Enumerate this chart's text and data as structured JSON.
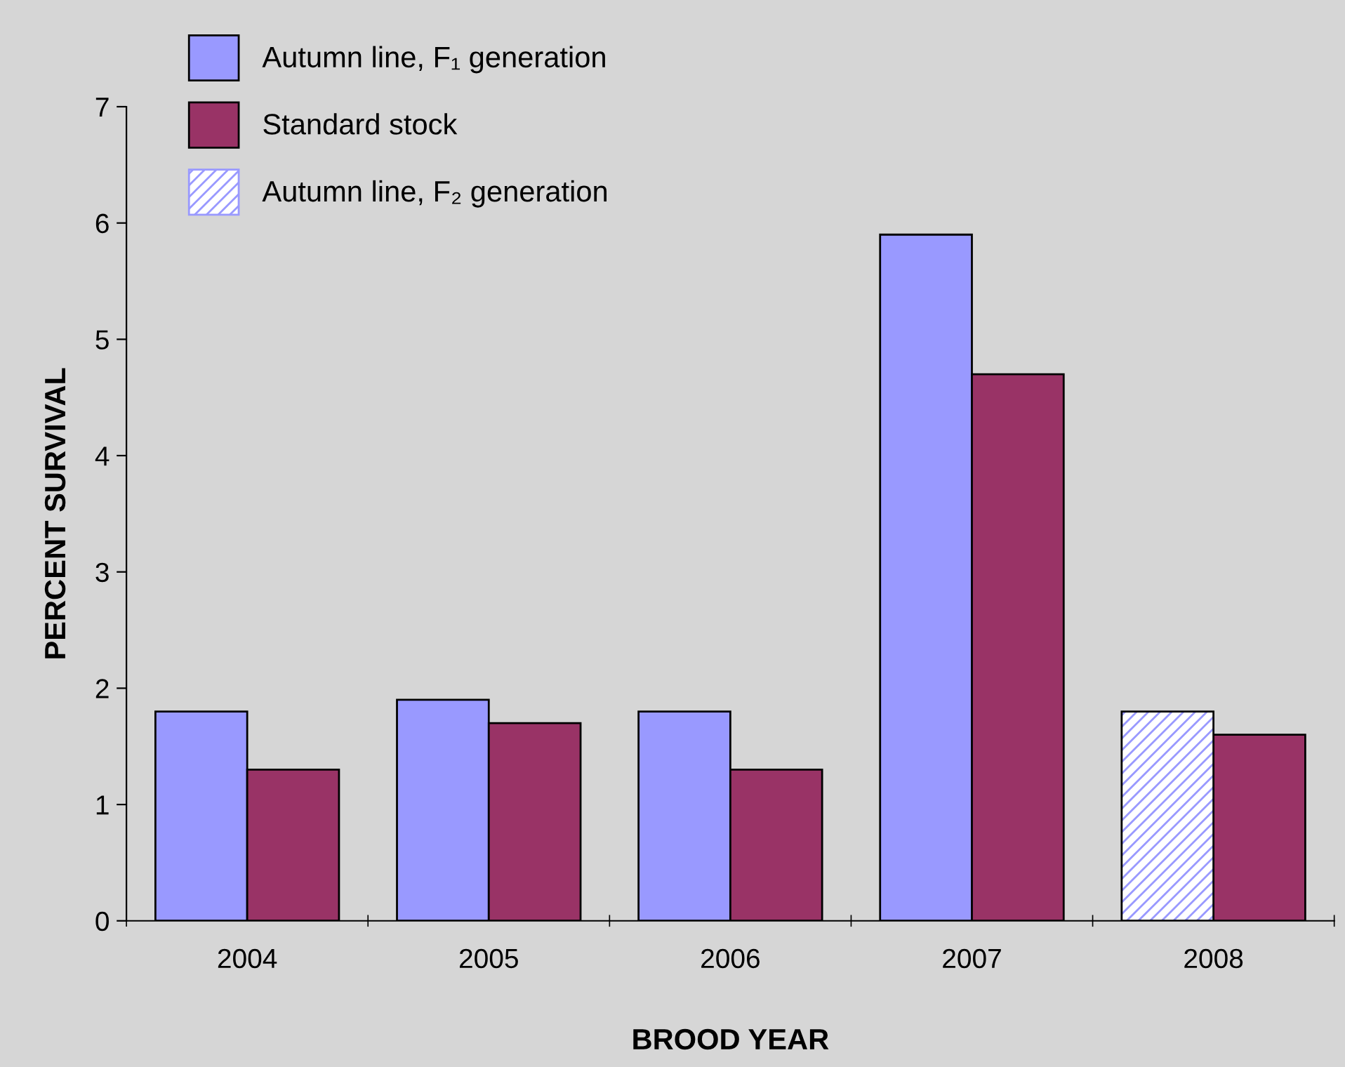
{
  "chart_data": {
    "type": "bar",
    "xlabel": "BROOD YEAR",
    "ylabel": "PERCENT SURVIVAL",
    "categories": [
      "2004",
      "2005",
      "2006",
      "2007",
      "2008"
    ],
    "series": [
      {
        "name": "Autumn line, F₁ generation",
        "color": "#9999ff",
        "values": [
          1.8,
          1.9,
          1.8,
          5.9,
          null
        ]
      },
      {
        "name": "Standard stock",
        "color": "#993366",
        "values": [
          1.3,
          1.7,
          1.3,
          4.7,
          1.6
        ]
      },
      {
        "name": "Autumn line, F₂ generation",
        "color": "#9999ff",
        "values": [
          null,
          null,
          null,
          null,
          1.8
        ]
      }
    ],
    "ylim": [
      0,
      7
    ],
    "yticks": [
      0,
      1,
      2,
      3,
      4,
      5,
      6,
      7
    ],
    "grid": false,
    "legend": "top left"
  }
}
